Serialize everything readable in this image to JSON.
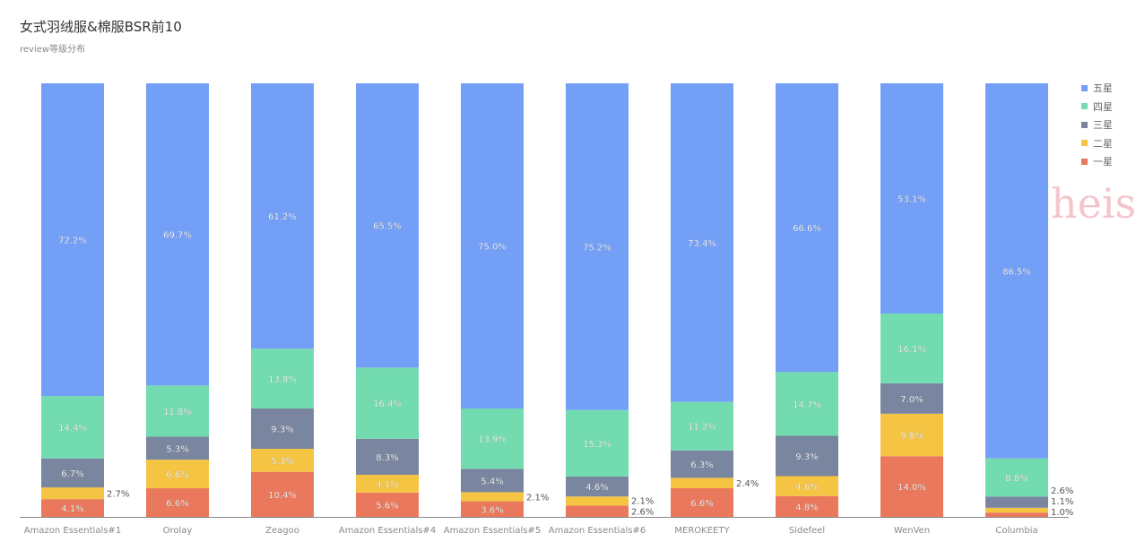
{
  "title": "女式羽绒服&棉服BSR前10",
  "subtitle": "review等级分布",
  "watermark": "heisi",
  "chart_data": {
    "type": "bar",
    "stacked": true,
    "normalized": true,
    "title": "女式羽绒服&棉服BSR前10",
    "subtitle": "review等级分布",
    "categories": [
      "Amazon Essentials#1",
      "Orolay",
      "Zeagoo",
      "Amazon Essentials#4",
      "Amazon Essentials#5",
      "Amazon Essentials#6",
      "MEROKEETY",
      "Sidefeel",
      "WenVen",
      "Columbia"
    ],
    "series": [
      {
        "name": "一星",
        "color": "#e9785c",
        "values": [
          4.1,
          6.6,
          10.4,
          5.6,
          3.6,
          2.6,
          6.6,
          4.8,
          14.0,
          1.0
        ]
      },
      {
        "name": "二星",
        "color": "#f5c443",
        "values": [
          2.7,
          6.6,
          5.3,
          4.1,
          2.1,
          2.1,
          2.4,
          4.6,
          9.8,
          1.1
        ]
      },
      {
        "name": "三星",
        "color": "#7a869f",
        "values": [
          6.7,
          5.3,
          9.3,
          8.3,
          5.4,
          4.6,
          6.3,
          9.3,
          7.0,
          2.6
        ]
      },
      {
        "name": "四星",
        "color": "#73dbb0",
        "values": [
          14.4,
          11.8,
          13.8,
          16.4,
          13.9,
          15.3,
          11.2,
          14.7,
          16.1,
          8.8
        ]
      },
      {
        "name": "五星",
        "color": "#739ff6",
        "values": [
          72.2,
          69.7,
          61.2,
          65.5,
          75.0,
          75.2,
          73.4,
          66.6,
          53.1,
          86.5
        ]
      }
    ],
    "legend_order": [
      "五星",
      "四星",
      "三星",
      "二星",
      "一星"
    ],
    "legend_position": "top-right",
    "ylim": [
      0,
      100
    ],
    "value_format": "percent-1dp"
  }
}
